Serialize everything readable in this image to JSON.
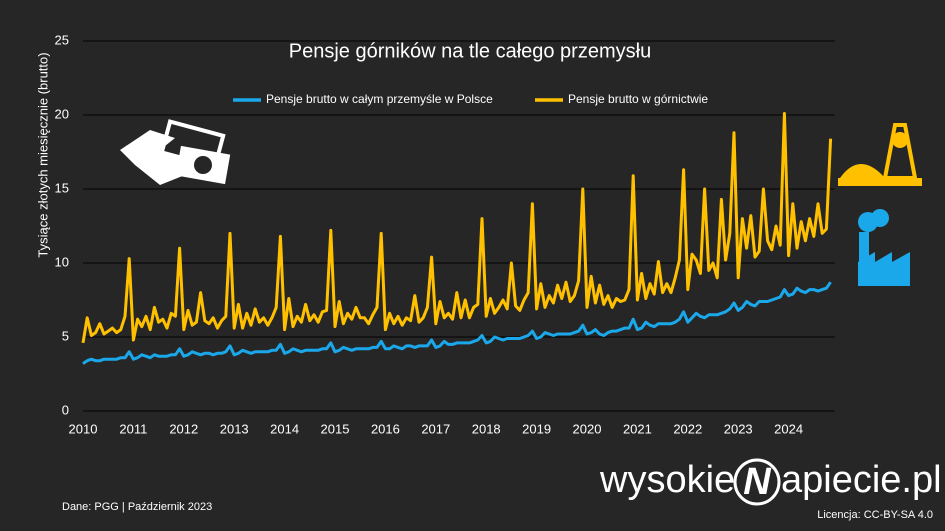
{
  "chart_data": {
    "type": "line",
    "title": "Pensje górników na tle całego przemysłu",
    "y_label": "Tysiące złotych miesięcznie (brutto)",
    "source": "Dane: PGG  |  Październik 2023",
    "license": "Licencja: CC-BY-SA 4.0",
    "logo": [
      "wysokie",
      "N",
      "apiecie.pl"
    ],
    "legend": "top",
    "grid": true,
    "ylim": [
      0,
      25
    ],
    "yticks": [
      0,
      5,
      10,
      15,
      20,
      25
    ],
    "categories": [
      "2010",
      null,
      null,
      null,
      null,
      null,
      null,
      null,
      null,
      null,
      null,
      null,
      "2011",
      null,
      null,
      null,
      null,
      null,
      null,
      null,
      null,
      null,
      null,
      null,
      "2012",
      null,
      null,
      null,
      null,
      null,
      null,
      null,
      null,
      null,
      null,
      null,
      "2013",
      null,
      null,
      null,
      null,
      null,
      null,
      null,
      null,
      null,
      null,
      null,
      "2014",
      null,
      null,
      null,
      null,
      null,
      null,
      null,
      null,
      null,
      null,
      null,
      "2015",
      null,
      null,
      null,
      null,
      null,
      null,
      null,
      null,
      null,
      null,
      null,
      "2016",
      null,
      null,
      null,
      null,
      null,
      null,
      null,
      null,
      null,
      null,
      null,
      "2017",
      null,
      null,
      null,
      null,
      null,
      null,
      null,
      null,
      null,
      null,
      null,
      "2018",
      null,
      null,
      null,
      null,
      null,
      null,
      null,
      null,
      null,
      null,
      null,
      "2019",
      null,
      null,
      null,
      null,
      null,
      null,
      null,
      null,
      null,
      null,
      null,
      "2020",
      null,
      null,
      null,
      null,
      null,
      null,
      null,
      null,
      null,
      null,
      null,
      "2021",
      null,
      null,
      null,
      null,
      null,
      null,
      null,
      null,
      null,
      null,
      null,
      "2022",
      null,
      null,
      null,
      null,
      null,
      null,
      null,
      null,
      null,
      null,
      null,
      "2023",
      null,
      null,
      null,
      null,
      null,
      null,
      null,
      null,
      null,
      null,
      null,
      "2024",
      null,
      null,
      null,
      null,
      null,
      null,
      null,
      null,
      null,
      null
    ],
    "series": [
      {
        "name": "Pensje brutto w całym przemyśle w Polsce",
        "color": "#1ba8ea",
        "values": [
          3.2,
          3.4,
          3.5,
          3.4,
          3.4,
          3.5,
          3.5,
          3.5,
          3.5,
          3.6,
          3.6,
          4.0,
          3.5,
          3.6,
          3.8,
          3.7,
          3.6,
          3.8,
          3.7,
          3.7,
          3.7,
          3.8,
          3.8,
          4.2,
          3.7,
          3.8,
          4.0,
          3.9,
          3.8,
          3.9,
          3.9,
          3.8,
          3.9,
          3.9,
          4.0,
          4.4,
          3.8,
          3.9,
          4.1,
          4.0,
          3.9,
          4.0,
          4.0,
          4.0,
          4.0,
          4.1,
          4.1,
          4.5,
          3.9,
          4.0,
          4.2,
          4.1,
          4.0,
          4.1,
          4.1,
          4.1,
          4.1,
          4.2,
          4.2,
          4.6,
          4.0,
          4.1,
          4.3,
          4.2,
          4.1,
          4.2,
          4.2,
          4.2,
          4.2,
          4.3,
          4.3,
          4.7,
          4.2,
          4.2,
          4.4,
          4.3,
          4.2,
          4.4,
          4.4,
          4.3,
          4.4,
          4.4,
          4.4,
          4.8,
          4.3,
          4.4,
          4.7,
          4.5,
          4.5,
          4.6,
          4.6,
          4.6,
          4.6,
          4.7,
          4.8,
          5.1,
          4.6,
          4.7,
          5.0,
          4.9,
          4.8,
          4.9,
          4.9,
          4.9,
          4.9,
          5.0,
          5.1,
          5.4,
          4.9,
          5.0,
          5.3,
          5.2,
          5.1,
          5.2,
          5.2,
          5.2,
          5.2,
          5.3,
          5.4,
          5.8,
          5.2,
          5.3,
          5.5,
          5.2,
          5.1,
          5.3,
          5.4,
          5.4,
          5.5,
          5.6,
          5.6,
          6.2,
          5.5,
          5.6,
          6.0,
          5.8,
          5.7,
          5.9,
          5.9,
          5.9,
          5.9,
          6.0,
          6.2,
          6.7,
          6.0,
          6.3,
          6.6,
          6.4,
          6.3,
          6.5,
          6.5,
          6.5,
          6.6,
          6.7,
          6.9,
          7.3,
          6.8,
          7.0,
          7.4,
          7.2,
          7.1,
          7.4,
          7.4,
          7.4,
          7.5,
          7.6,
          7.7,
          8.2,
          7.8,
          7.9,
          8.3,
          8.1,
          8.0,
          8.2,
          8.2,
          8.1,
          8.2,
          8.3,
          8.7
        ]
      },
      {
        "name": "Pensje brutto w górnictwie",
        "color": "#ffc000",
        "values": [
          4.6,
          6.3,
          5.1,
          5.3,
          5.9,
          5.2,
          5.4,
          5.6,
          5.3,
          5.5,
          6.4,
          10.3,
          4.8,
          6.2,
          5.7,
          6.4,
          5.5,
          7.0,
          6.0,
          6.2,
          5.6,
          6.6,
          6.4,
          11.0,
          5.5,
          6.8,
          5.8,
          6.0,
          8.0,
          6.1,
          5.9,
          6.3,
          5.6,
          6.1,
          6.4,
          12.0,
          5.6,
          7.2,
          5.6,
          6.6,
          5.8,
          6.9,
          6.0,
          6.3,
          5.8,
          6.3,
          7.0,
          11.8,
          5.5,
          7.6,
          5.7,
          6.4,
          6.0,
          7.2,
          6.1,
          6.5,
          6.0,
          6.7,
          6.8,
          12.2,
          5.7,
          7.4,
          5.9,
          6.6,
          6.2,
          7.0,
          6.3,
          6.3,
          5.9,
          6.5,
          7.0,
          12.0,
          5.5,
          6.6,
          5.9,
          6.4,
          5.8,
          6.3,
          6.1,
          7.8,
          6.0,
          6.3,
          7.0,
          10.4,
          5.9,
          7.4,
          6.3,
          6.6,
          6.2,
          8.0,
          6.3,
          7.5,
          6.3,
          7.0,
          7.2,
          13.0,
          6.4,
          7.6,
          6.6,
          7.0,
          7.5,
          6.9,
          10.0,
          7.1,
          6.8,
          7.5,
          8.0,
          14.0,
          6.9,
          8.6,
          7.0,
          7.8,
          7.3,
          8.5,
          7.6,
          8.7,
          7.4,
          7.8,
          8.8,
          15.0,
          7.0,
          9.1,
          7.3,
          8.5,
          7.2,
          7.8,
          7.0,
          7.6,
          7.4,
          7.5,
          8.2,
          15.9,
          7.5,
          9.3,
          7.6,
          8.6,
          7.9,
          10.1,
          8.0,
          8.6,
          8.0,
          9.0,
          10.2,
          16.3,
          8.2,
          10.6,
          10.2,
          9.3,
          15.0,
          9.5,
          10.0,
          9.0,
          14.3,
          10.2,
          12.0,
          18.8,
          9.0,
          13.0,
          11.0,
          13.2,
          10.4,
          10.8,
          15.0,
          11.5,
          10.9,
          12.5,
          11.2,
          20.1,
          10.5,
          14.0,
          11.0,
          12.8,
          11.5,
          13.0,
          11.8,
          14.0,
          12.0,
          12.3,
          18.4
        ]
      }
    ]
  }
}
